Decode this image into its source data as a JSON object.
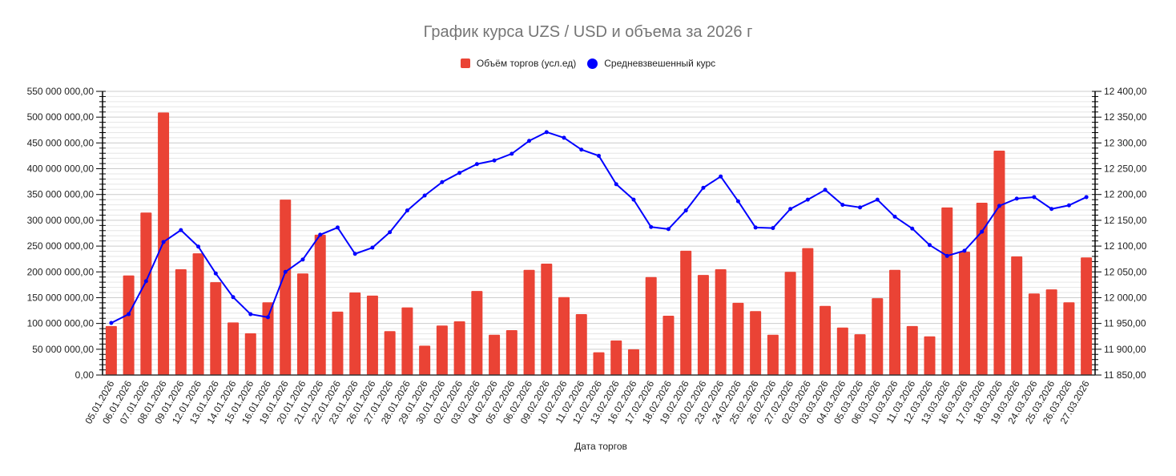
{
  "chart_data": {
    "type": "bar+line",
    "title": "График курса UZS / USD и объема за 2026 г",
    "xlabel": "Дата торгов",
    "ylabel_left": "",
    "ylabel_right": "",
    "legend": [
      {
        "name": "Объём торгов (усл.ед)",
        "color": "#ea4335",
        "marker": "square"
      },
      {
        "name": "Средневзвешенный курс",
        "color": "#0000ff",
        "marker": "circle"
      }
    ],
    "legend_position": "top",
    "grid": true,
    "left_axis": {
      "ylim": [
        0,
        550000000
      ],
      "ticks": [
        "0,00",
        "50 000 000,00",
        "100 000 000,00",
        "150 000 000,00",
        "200 000 000,00",
        "250 000 000,00",
        "300 000 000,00",
        "350 000 000,00",
        "400 000 000,00",
        "450 000 000,00",
        "500 000 000,00",
        "550 000 000,00"
      ]
    },
    "right_axis": {
      "ylim": [
        11850,
        12400
      ],
      "ticks": [
        "11 850,00",
        "11 900,00",
        "11 950,00",
        "12 000,00",
        "12 050,00",
        "12 100,00",
        "12 150,00",
        "12 200,00",
        "12 250,00",
        "12 300,00",
        "12 350,00",
        "12 400,00"
      ]
    },
    "categories": [
      "05.01.2026",
      "06.01.2026",
      "07.01.2026",
      "08.01.2026",
      "09.01.2026",
      "12.01.2026",
      "13.01.2026",
      "14.01.2026",
      "15.01.2026",
      "16.01.2026",
      "19.01.2026",
      "20.01.2026",
      "21.01.2026",
      "22.01.2026",
      "23.01.2026",
      "26.01.2026",
      "27.01.2026",
      "28.01.2026",
      "29.01.2026",
      "30.01.2026",
      "02.02.2026",
      "03.02.2026",
      "04.02.2026",
      "05.02.2026",
      "06.02.2026",
      "09.02.2026",
      "10.02.2026",
      "11.02.2026",
      "12.02.2026",
      "13.02.2026",
      "16.02.2026",
      "17.02.2026",
      "18.02.2026",
      "19.02.2026",
      "20.02.2026",
      "23.02.2026",
      "24.02.2026",
      "25.02.2026",
      "26.02.2026",
      "27.02.2026",
      "02.03.2026",
      "03.03.2026",
      "04.03.2026",
      "05.03.2026",
      "06.03.2026",
      "10.03.2026",
      "11.03.2026",
      "12.03.2026",
      "13.03.2026",
      "16.03.2026",
      "17.03.2026",
      "18.03.2026",
      "19.03.2026",
      "24.03.2026",
      "25.03.2026",
      "26.03.2026",
      "27.03.2026"
    ],
    "series": [
      {
        "name": "Объём торгов (усл.ед)",
        "type": "bar",
        "axis": "left",
        "color": "#ea4335",
        "values": [
          95000000,
          193000000,
          315000000,
          509000000,
          205000000,
          236000000,
          180000000,
          102000000,
          81000000,
          141000000,
          340000000,
          197000000,
          272000000,
          123000000,
          160000000,
          154000000,
          85000000,
          131000000,
          57000000,
          96000000,
          104000000,
          163000000,
          78000000,
          87000000,
          204000000,
          216000000,
          151000000,
          118000000,
          44000000,
          67000000,
          50000000,
          190000000,
          115000000,
          241000000,
          194000000,
          205000000,
          140000000,
          124000000,
          78000000,
          200000000,
          246000000,
          134000000,
          92000000,
          79000000,
          149000000,
          204000000,
          95000000,
          75000000,
          325000000,
          239000000,
          334000000,
          435000000,
          230000000,
          158000000,
          166000000,
          141000000,
          228000000
        ]
      },
      {
        "name": "Средневзвешенный курс",
        "type": "line",
        "axis": "right",
        "color": "#0000ff",
        "values": [
          11951,
          11968,
          12032,
          12108,
          12131,
          12099,
          12047,
          12001,
          11968,
          11962,
          12050,
          12074,
          12122,
          12136,
          12085,
          12097,
          12127,
          12169,
          12198,
          12224,
          12242,
          12259,
          12266,
          12279,
          12304,
          12321,
          12310,
          12287,
          12275,
          12220,
          12190,
          12137,
          12133,
          12169,
          12213,
          12235,
          12187,
          12136,
          12135,
          12172,
          12190,
          12209,
          12180,
          12175,
          12190,
          12157,
          12134,
          12102,
          12081,
          12091,
          12128,
          12178,
          12192,
          12195,
          12172,
          12179,
          12195
        ]
      }
    ]
  }
}
